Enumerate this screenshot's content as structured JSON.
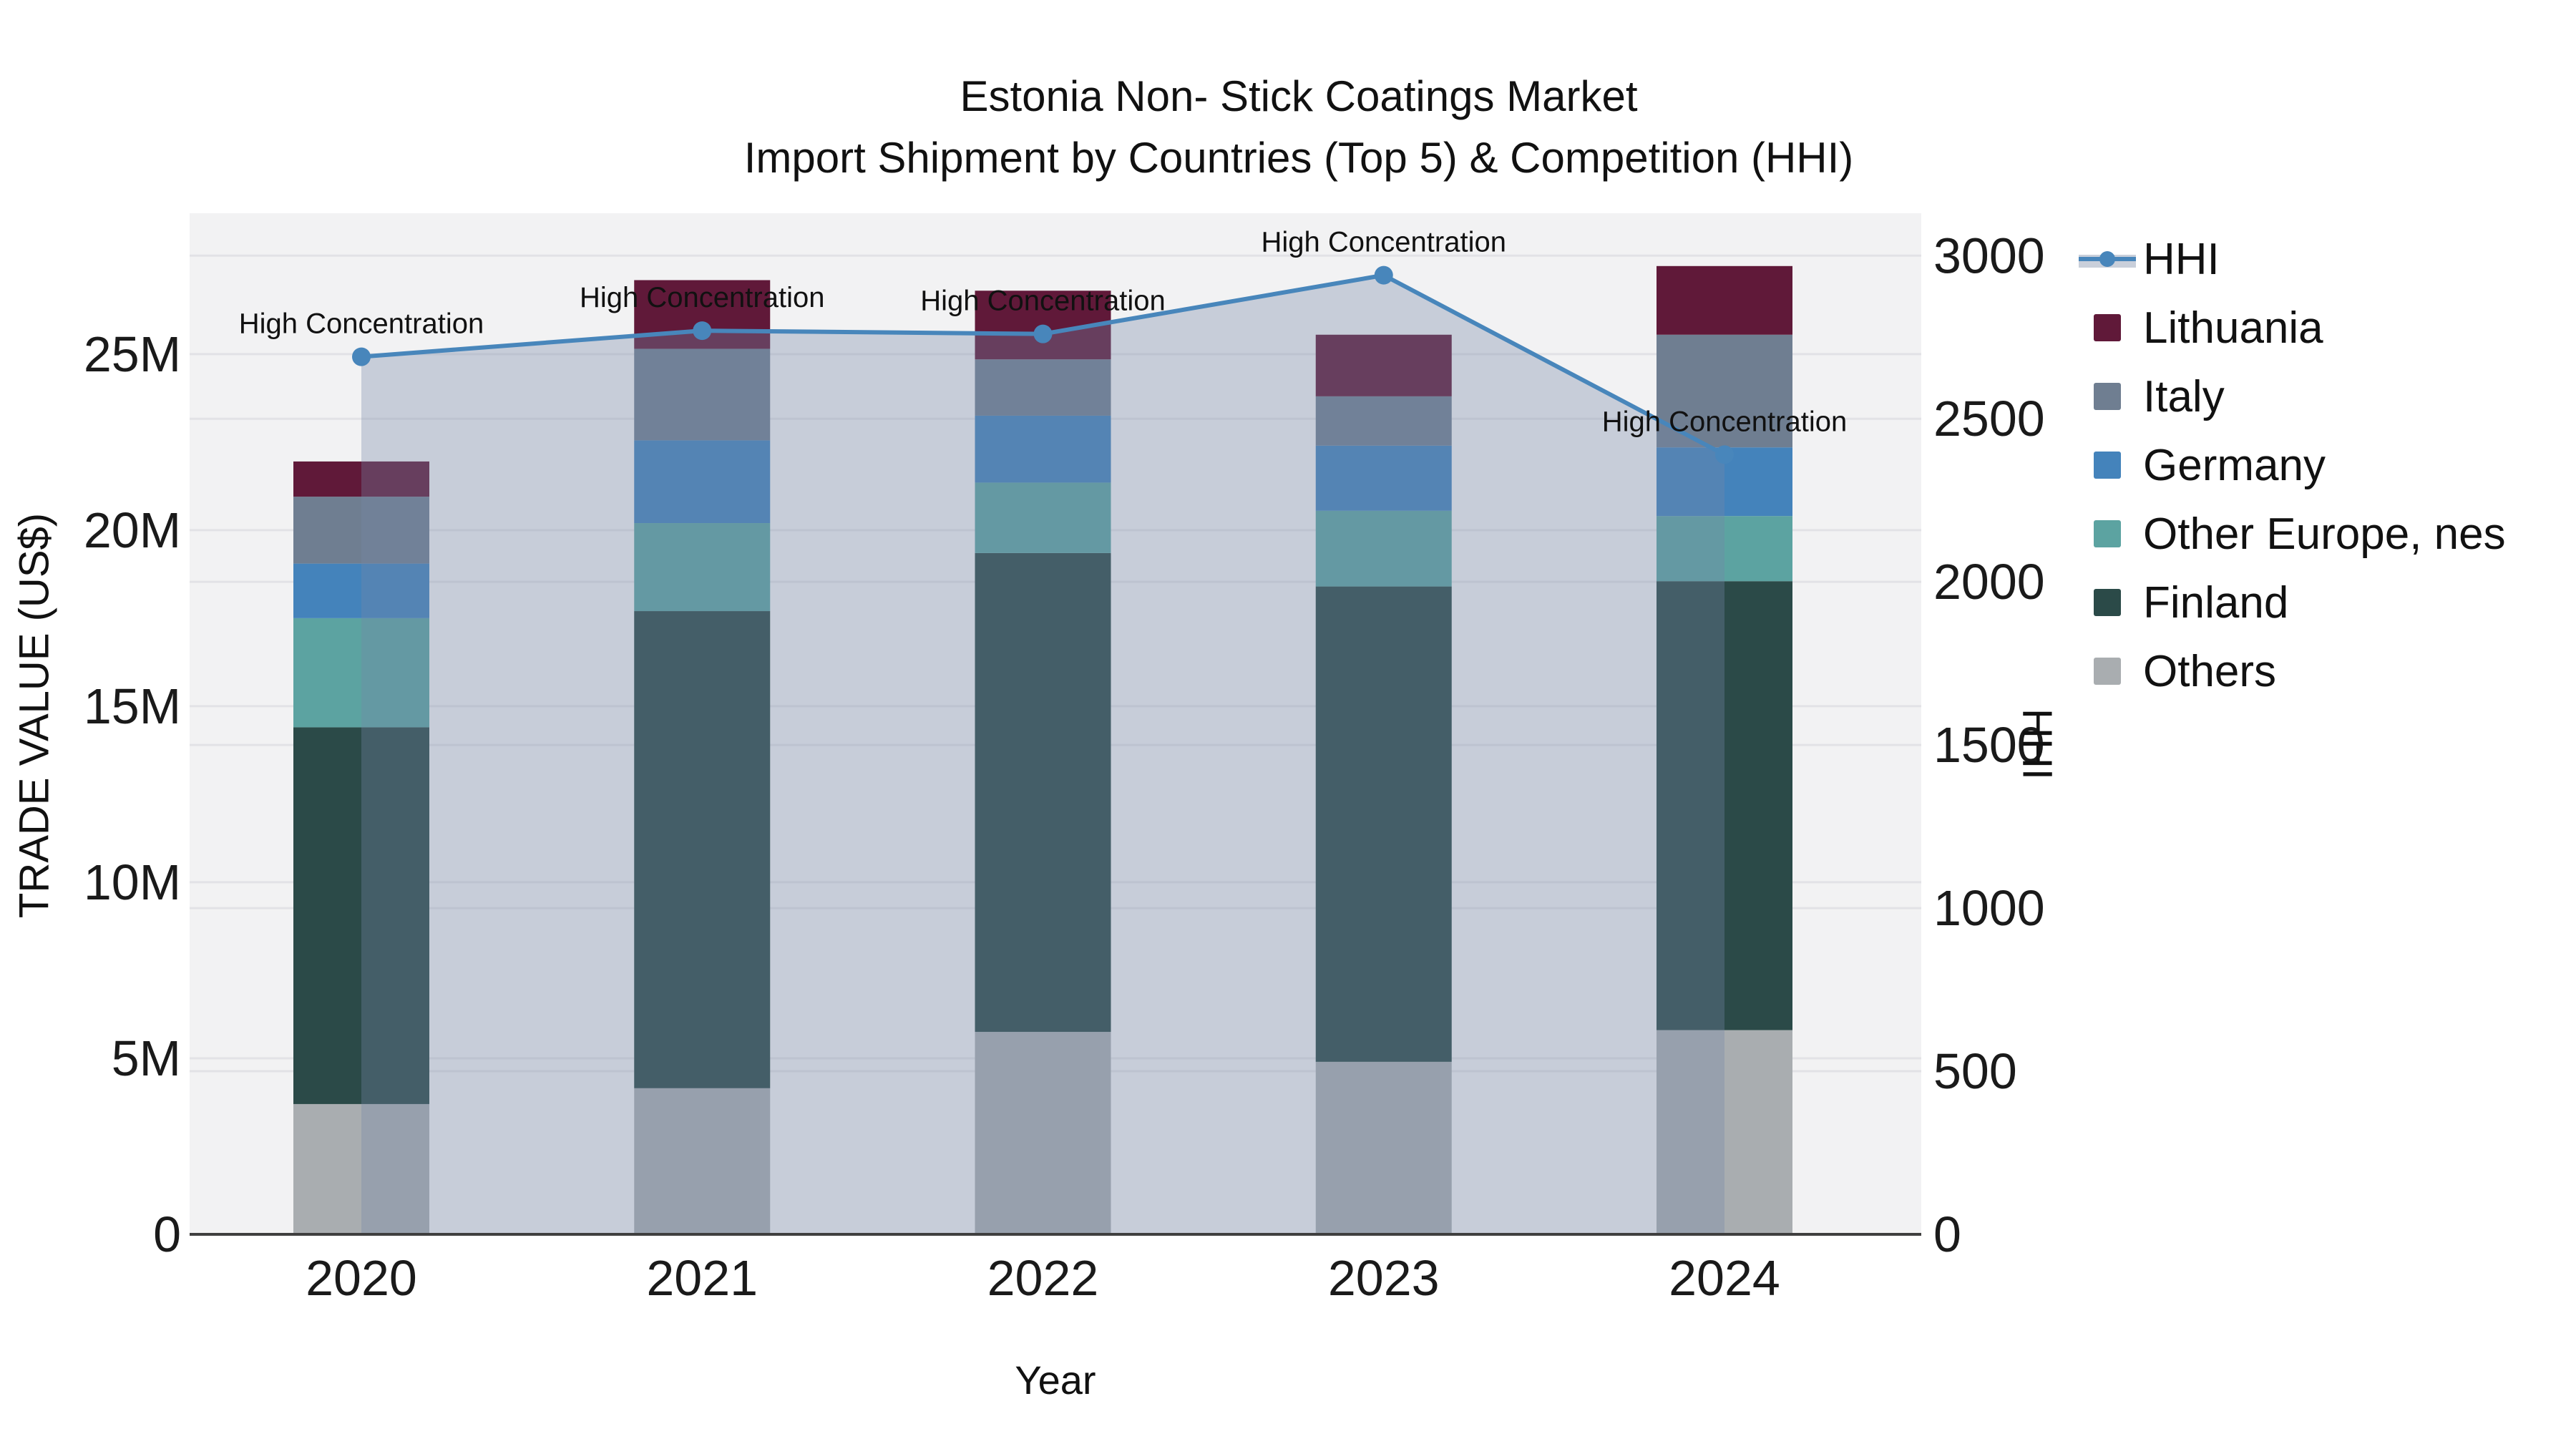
{
  "page": {
    "title_line1": "Estonia Non- Stick Coatings Market",
    "title_line2": "Import Shipment by Countries (Top 5) & Competition (HHI)"
  },
  "colors": {
    "plot_bg": "#F2F2F3",
    "grid": "#E2E2E6",
    "axis_line": "#3F3F3F",
    "text": "#1A1A1A",
    "area_fill": "rgba(116,134,168,0.34)",
    "hhi_line": "#4886BB",
    "legend_area_swatch": "#C9CFDA"
  },
  "chart_data": {
    "type": "bar+line",
    "title": "Estonia Non- Stick Coatings Market Import Shipment by Countries (Top 5) & Competition (HHI)",
    "categories": [
      "2020",
      "2021",
      "2022",
      "2023",
      "2024"
    ],
    "bar_value_unit": "millions US$",
    "bar_series_bottom_to_top": [
      {
        "name": "Others",
        "color": "#A9ADB0",
        "values": [
          3.7,
          4.15,
          5.75,
          4.9,
          5.8
        ]
      },
      {
        "name": "Finland",
        "color": "#2B4A48",
        "values": [
          10.7,
          13.55,
          13.6,
          13.5,
          12.75
        ]
      },
      {
        "name": "Other Europe, nes",
        "color": "#5CA3A1",
        "values": [
          3.1,
          2.5,
          2.0,
          2.15,
          1.85
        ]
      },
      {
        "name": "Germany",
        "color": "#4483BB",
        "values": [
          1.55,
          2.35,
          1.9,
          1.85,
          1.95
        ]
      },
      {
        "name": "Italy",
        "color": "#6F7E91",
        "values": [
          1.9,
          2.6,
          1.6,
          1.4,
          3.2
        ]
      },
      {
        "name": "Lithuania",
        "color": "#601939",
        "values": [
          1.0,
          1.95,
          1.95,
          1.75,
          1.95
        ]
      }
    ],
    "bar_totals": [
      21.95,
      27.1,
      26.8,
      25.55,
      27.5
    ],
    "line_series": {
      "name": "HHI",
      "values": [
        2690,
        2770,
        2760,
        2940,
        2390
      ],
      "marker": "circle",
      "area_fill_from": "2020",
      "area_fill_to": "2024"
    },
    "point_annotations": [
      "High Concentration",
      "High Concentration",
      "High Concentration",
      "High Concentration",
      "High Concentration"
    ],
    "axes": {
      "x": {
        "label": "Year"
      },
      "left": {
        "label": "TRADE VALUE (US$)",
        "tick_labels": [
          "0",
          "5M",
          "10M",
          "15M",
          "20M",
          "25M"
        ],
        "tick_values_M": [
          0,
          5,
          10,
          15,
          20,
          25
        ],
        "range_M": [
          0,
          29.0
        ]
      },
      "right": {
        "label": "HHI",
        "tick_labels": [
          "0",
          "500",
          "1000",
          "1500",
          "2000",
          "2500",
          "3000"
        ],
        "tick_values": [
          0,
          500,
          1000,
          1500,
          2000,
          2500,
          3000
        ],
        "range": [
          0,
          3130
        ]
      }
    },
    "legend": {
      "position": "right",
      "items": [
        {
          "label": "HHI",
          "type": "line"
        },
        {
          "label": "Lithuania",
          "type": "square",
          "color": "#601939"
        },
        {
          "label": "Italy",
          "type": "square",
          "color": "#6F7E91"
        },
        {
          "label": "Germany",
          "type": "square",
          "color": "#4483BB"
        },
        {
          "label": "Other Europe, nes",
          "type": "square",
          "color": "#5CA3A1"
        },
        {
          "label": "Finland",
          "type": "square",
          "color": "#2B4A48"
        },
        {
          "label": "Others",
          "type": "square",
          "color": "#A9ADB0"
        }
      ]
    },
    "grid": true
  }
}
